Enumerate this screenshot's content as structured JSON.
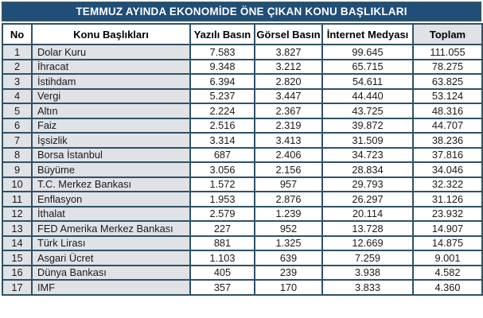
{
  "title": "TEMMUZ AYINDA EKONOMİDE ÖNE ÇIKAN KONU BAŞLIKLARI",
  "chart_data": {
    "type": "table",
    "title": "TEMMUZ AYINDA EKONOMİDE ÖNE ÇIKAN KONU BAŞLIKLARI",
    "columns": [
      "No",
      "Konu Başlıkları",
      "Yazılı Basın",
      "Görsel Basın",
      "İnternet Medyası",
      "Toplam"
    ],
    "rows": [
      [
        "1",
        "Dolar Kuru",
        "7.583",
        "3.827",
        "99.645",
        "111.055"
      ],
      [
        "2",
        "İhracat",
        "9.348",
        "3.212",
        "65.715",
        "78.275"
      ],
      [
        "3",
        "İstihdam",
        "6.394",
        "2.820",
        "54.611",
        "63.825"
      ],
      [
        "4",
        "Vergi",
        "5.237",
        "3.447",
        "44.440",
        "53.124"
      ],
      [
        "5",
        "Altın",
        "2.224",
        "2.367",
        "43.725",
        "48.316"
      ],
      [
        "6",
        "Faiz",
        "2.516",
        "2.319",
        "39.872",
        "44.707"
      ],
      [
        "7",
        "İşsizlik",
        "3.314",
        "3.413",
        "31.509",
        "38.236"
      ],
      [
        "8",
        "Borsa İstanbul",
        "687",
        "2.406",
        "34.723",
        "37.816"
      ],
      [
        "9",
        "Büyüme",
        "3.056",
        "2.156",
        "28.834",
        "34.046"
      ],
      [
        "10",
        "T.C. Merkez Bankası",
        "1.572",
        "957",
        "29.793",
        "32.322"
      ],
      [
        "11",
        "Enflasyon",
        "1.953",
        "2.876",
        "26.297",
        "31.126"
      ],
      [
        "12",
        "İthalat",
        "2.579",
        "1.239",
        "20.114",
        "23.932"
      ],
      [
        "13",
        "FED Amerika Merkez Bankası",
        "227",
        "952",
        "13.728",
        "14.907"
      ],
      [
        "14",
        "Türk Lirası",
        "881",
        "1.325",
        "12.669",
        "14.875"
      ],
      [
        "15",
        "Asgari Ücret",
        "1.103",
        "639",
        "7.259",
        "9.001"
      ],
      [
        "16",
        "Dünya Bankası",
        "405",
        "239",
        "3.938",
        "4.582"
      ],
      [
        "17",
        "IMF",
        "357",
        "170",
        "3.833",
        "4.360"
      ]
    ]
  },
  "colors": {
    "title_bg": "#1f4e79",
    "border": "#2e5266",
    "row_label_bg": "#e0e2e6",
    "cell_bg": "#ffffff",
    "title_text": "#ffffff",
    "text": "#1a1a1a"
  }
}
